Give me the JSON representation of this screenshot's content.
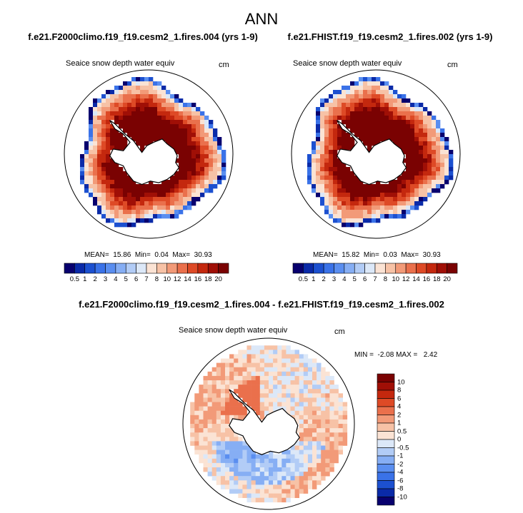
{
  "main_title": "ANN",
  "panels": [
    {
      "case": "f.e21.F2000climo.f19_f19.cesm2_1.fires.004 (yrs 1-9)",
      "variable": "Seaice snow depth water equiv",
      "units": "cm",
      "stats": "MEAN=  15.86  Min=  0.04  Max=  30.93"
    },
    {
      "case": "f.e21.FHIST.f19_f19.cesm2_1.fires.002 (yrs 1-9)",
      "variable": "Seaice snow depth water equiv",
      "units": "cm",
      "stats": "MEAN=  15.82  Min=  0.03  Max=  30.93"
    }
  ],
  "diff": {
    "case": "f.e21.F2000climo.f19_f19.cesm2_1.fires.004 - f.e21.FHIST.f19_f19.cesm2_1.fires.002",
    "variable": "Seaice snow depth water equiv",
    "units": "cm",
    "stats": "MIN =  -2.08 MAX =   2.42"
  },
  "colorbar_abs": {
    "ticks": [
      "0.5",
      "1",
      "2",
      "3",
      "4",
      "5",
      "6",
      "7",
      "8",
      "10",
      "12",
      "14",
      "16",
      "18",
      "20"
    ],
    "colors": [
      "#08006e",
      "#0a2aa8",
      "#1c50d0",
      "#3a72e8",
      "#5a8ef0",
      "#86aef4",
      "#b2ccf6",
      "#dce8f8",
      "#fbe3d4",
      "#f7c2a6",
      "#f29a78",
      "#ea704c",
      "#de4a26",
      "#c4280e",
      "#a00f06",
      "#7a0202"
    ]
  },
  "colorbar_diff": {
    "ticks": [
      "10",
      "8",
      "6",
      "4",
      "2",
      "1",
      "0.5",
      "0",
      "-0.5",
      "-1",
      "-2",
      "-4",
      "-6",
      "-8",
      "-10"
    ],
    "colors": [
      "#7a0202",
      "#a00f06",
      "#c4280e",
      "#de4a26",
      "#ea704c",
      "#f29a78",
      "#f7c2a6",
      "#fbe3d4",
      "#dce8f8",
      "#b2ccf6",
      "#86aef4",
      "#5a8ef0",
      "#3a72e8",
      "#1c50d0",
      "#0a2aa8",
      "#08006e"
    ]
  }
}
